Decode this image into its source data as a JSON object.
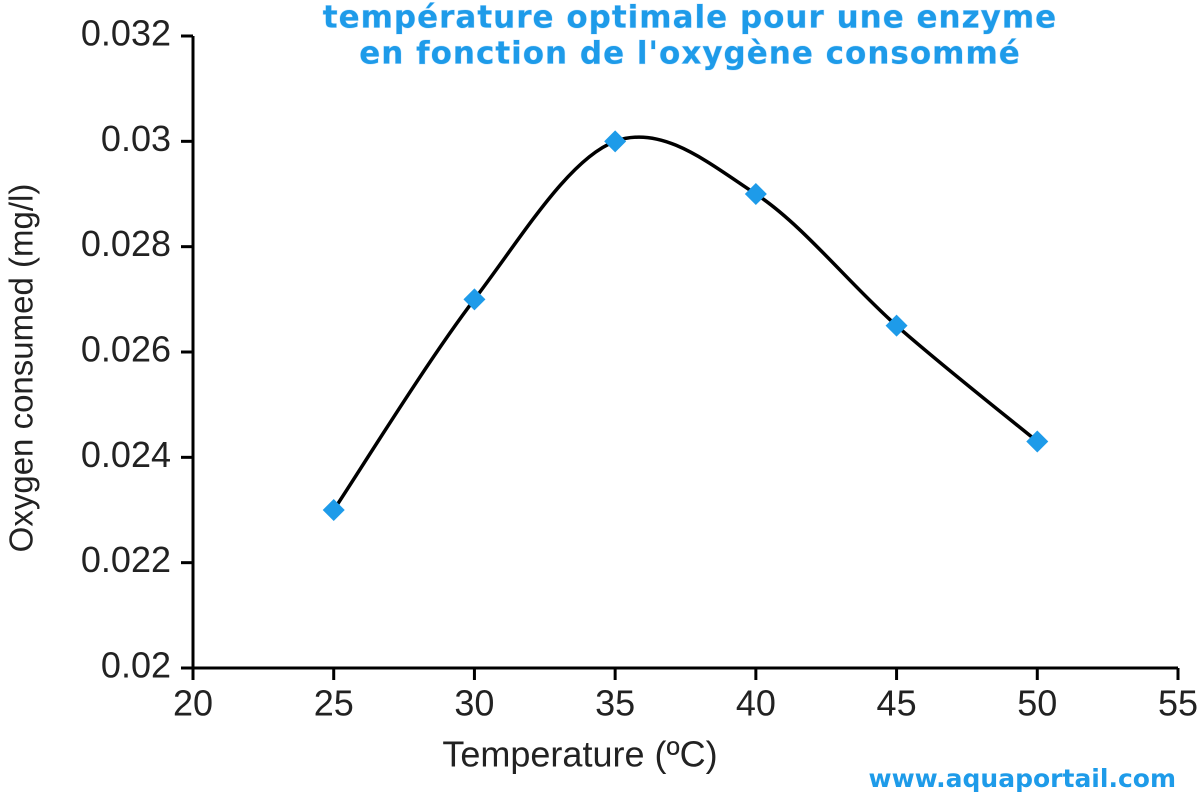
{
  "chart_data": {
    "type": "line",
    "title": "température optimale pour une enzyme",
    "subtitle": "en fonction de l'oxygène consommé",
    "x_label": "Temperature (ºC)",
    "y_label": "Oxygen consumed (mg/l)",
    "x": [
      25,
      30,
      35,
      40,
      45,
      50
    ],
    "values": [
      0.023,
      0.027,
      0.03,
      0.029,
      0.0265,
      0.0243
    ],
    "line_color": "#000000",
    "marker_color": "#1e9be9",
    "xlim": [
      20,
      55
    ],
    "xticks": [
      20,
      25,
      30,
      35,
      40,
      45,
      50,
      55
    ],
    "ylim": [
      0.02,
      0.032
    ],
    "yticks": [
      0.02,
      0.022,
      0.024,
      0.026,
      0.028,
      0.03,
      0.032
    ],
    "grid": false,
    "watermark": "www.aquaportail.com"
  }
}
